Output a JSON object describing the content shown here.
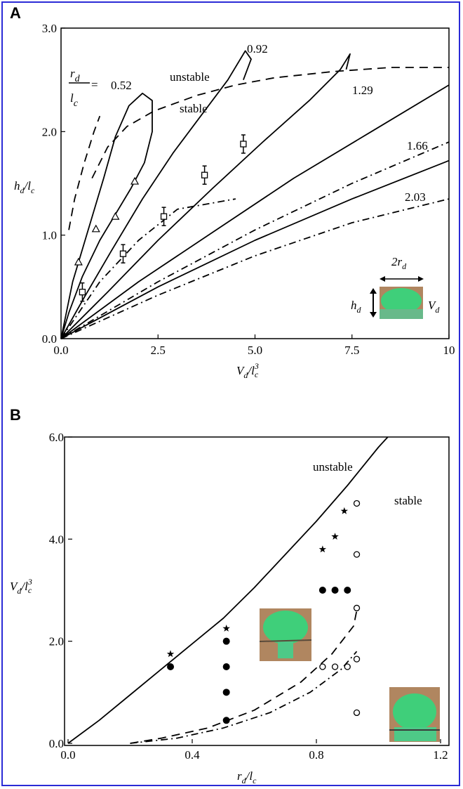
{
  "panel_labels": [
    "A",
    "B"
  ],
  "chart_data": [
    {
      "type": "line",
      "panel": "A",
      "xlabel": "V_d/l_c^3",
      "ylabel": "h_d/l_c",
      "xlim": [
        0,
        10
      ],
      "ylim": [
        0,
        3.0
      ],
      "x_ticks": [
        "0.0",
        "2.5",
        "5.0",
        "7.5",
        "10"
      ],
      "y_ticks": [
        "0.0",
        "1.0",
        "2.0",
        "3.0"
      ],
      "legend_param": "r_d/l_c =",
      "annotations": [
        "unstable",
        "stable",
        "0.52",
        "0.92",
        "1.29",
        "1.66",
        "2.03",
        "2r_d",
        "h_d",
        "V_d"
      ],
      "series": [
        {
          "label": "0.52",
          "style": "solid",
          "points": [
            [
              0,
              0
            ],
            [
              0.3,
              0.55
            ],
            [
              0.7,
              1.05
            ],
            [
              1.1,
              1.55
            ],
            [
              1.4,
              1.95
            ],
            [
              1.75,
              2.25
            ],
            [
              2.1,
              2.37
            ],
            [
              2.35,
              2.3
            ],
            [
              2.35,
              2.0
            ],
            [
              2.15,
              1.7
            ],
            [
              1.8,
              1.45
            ],
            [
              1.4,
              1.2
            ],
            [
              1.0,
              0.95
            ],
            [
              0.55,
              0.6
            ],
            [
              0.2,
              0.25
            ],
            [
              0,
              0
            ]
          ]
        },
        {
          "label": "0.92",
          "style": "solid",
          "points": [
            [
              0,
              0
            ],
            [
              0.6,
              0.4
            ],
            [
              1.3,
              0.85
            ],
            [
              2.1,
              1.35
            ],
            [
              2.9,
              1.8
            ],
            [
              3.6,
              2.15
            ],
            [
              4.3,
              2.5
            ],
            [
              4.75,
              2.78
            ],
            [
              4.9,
              2.7
            ],
            [
              4.7,
              2.5
            ]
          ]
        },
        {
          "label": "1.29",
          "style": "solid",
          "points": [
            [
              0,
              0
            ],
            [
              1.2,
              0.45
            ],
            [
              2.5,
              0.95
            ],
            [
              3.9,
              1.45
            ],
            [
              5.2,
              1.9
            ],
            [
              6.4,
              2.3
            ],
            [
              7.2,
              2.6
            ],
            [
              7.45,
              2.75
            ],
            [
              7.35,
              2.6
            ]
          ]
        },
        {
          "label": "1.66",
          "style": "solid",
          "points": [
            [
              0,
              0
            ],
            [
              2,
              0.55
            ],
            [
              4,
              1.05
            ],
            [
              6,
              1.55
            ],
            [
              8,
              2.0
            ],
            [
              10,
              2.45
            ]
          ]
        },
        {
          "label": "2.03",
          "style": "solid",
          "points": [
            [
              0,
              0
            ],
            [
              2.5,
              0.5
            ],
            [
              5,
              0.95
            ],
            [
              7.5,
              1.35
            ],
            [
              10,
              1.72
            ]
          ]
        },
        {
          "label": "",
          "style": "dashed",
          "points": [
            [
              0.8,
              1.55
            ],
            [
              1.2,
              1.85
            ],
            [
              1.7,
              2.05
            ],
            [
              2.4,
              2.2
            ],
            [
              3.5,
              2.35
            ],
            [
              4.5,
              2.45
            ],
            [
              5.5,
              2.52
            ],
            [
              7,
              2.58
            ],
            [
              8.5,
              2.62
            ],
            [
              10,
              2.62
            ]
          ]
        },
        {
          "label": "",
          "style": "dashed",
          "points": [
            [
              0.2,
              1.05
            ],
            [
              0.35,
              1.35
            ],
            [
              0.6,
              1.7
            ],
            [
              0.85,
              2.0
            ],
            [
              1.0,
              2.15
            ]
          ]
        },
        {
          "label": "",
          "style": "dotdash",
          "points": [
            [
              0,
              0
            ],
            [
              1,
              0.55
            ],
            [
              2,
              0.95
            ],
            [
              3,
              1.25
            ],
            [
              4.5,
              1.35
            ]
          ]
        },
        {
          "label": "",
          "style": "dotdash",
          "points": [
            [
              0,
              0
            ],
            [
              2.5,
              0.55
            ],
            [
              5,
              1.05
            ],
            [
              7.5,
              1.5
            ],
            [
              10,
              1.9
            ]
          ]
        },
        {
          "label": "",
          "style": "dotdash",
          "points": [
            [
              0,
              0
            ],
            [
              2.5,
              0.42
            ],
            [
              5,
              0.8
            ],
            [
              7.5,
              1.12
            ],
            [
              10,
              1.35
            ]
          ]
        }
      ],
      "markers": {
        "triangles": [
          [
            0.45,
            0.74
          ],
          [
            0.9,
            1.06
          ],
          [
            1.4,
            1.18
          ],
          [
            1.9,
            1.52
          ]
        ],
        "squares_with_errorbars": [
          [
            0.55,
            0.45
          ],
          [
            1.6,
            0.82
          ],
          [
            2.65,
            1.18
          ],
          [
            3.7,
            1.58
          ],
          [
            4.7,
            1.88
          ]
        ]
      }
    },
    {
      "type": "scatter",
      "panel": "B",
      "xlabel": "r_d/l_c",
      "ylabel": "V_d/l_c^3",
      "xlim": [
        0,
        1.2
      ],
      "ylim": [
        0,
        6.0
      ],
      "x_ticks": [
        "0.0",
        "0.4",
        "0.8",
        "1.2"
      ],
      "y_ticks": [
        "0.0",
        "2.0",
        "4.0",
        "6.0"
      ],
      "annotations": [
        "unstable",
        "stable"
      ],
      "series": [
        {
          "label": "",
          "style": "solid",
          "points": [
            [
              0,
              0
            ],
            [
              0.1,
              0.45
            ],
            [
              0.2,
              0.95
            ],
            [
              0.3,
              1.45
            ],
            [
              0.4,
              1.95
            ],
            [
              0.5,
              2.45
            ],
            [
              0.6,
              3.05
            ],
            [
              0.7,
              3.7
            ],
            [
              0.8,
              4.35
            ],
            [
              0.9,
              5.05
            ],
            [
              1.0,
              5.8
            ],
            [
              1.03,
              6.0
            ]
          ]
        },
        {
          "label": "",
          "style": "dashed",
          "points": [
            [
              0.2,
              0.0
            ],
            [
              0.3,
              0.1
            ],
            [
              0.45,
              0.3
            ],
            [
              0.6,
              0.65
            ],
            [
              0.75,
              1.2
            ],
            [
              0.85,
              1.75
            ],
            [
              0.92,
              2.3
            ],
            [
              0.93,
              2.6
            ]
          ]
        },
        {
          "label": "",
          "style": "dotdash",
          "points": [
            [
              0.2,
              0.0
            ],
            [
              0.35,
              0.1
            ],
            [
              0.5,
              0.3
            ],
            [
              0.65,
              0.6
            ],
            [
              0.78,
              1.0
            ],
            [
              0.88,
              1.45
            ],
            [
              0.93,
              1.8
            ]
          ]
        }
      ],
      "markers": {
        "filled_circles": [
          [
            0.33,
            1.5
          ],
          [
            0.51,
            2.0
          ],
          [
            0.51,
            1.5
          ],
          [
            0.51,
            1.0
          ],
          [
            0.51,
            0.45
          ],
          [
            0.82,
            3.0
          ],
          [
            0.86,
            3.0
          ],
          [
            0.9,
            3.0
          ]
        ],
        "open_circles": [
          [
            0.93,
            4.7
          ],
          [
            0.93,
            3.7
          ],
          [
            0.93,
            2.65
          ],
          [
            0.93,
            1.65
          ],
          [
            0.93,
            0.6
          ],
          [
            0.82,
            1.5
          ],
          [
            0.86,
            1.5
          ],
          [
            0.9,
            1.5
          ]
        ],
        "stars": [
          [
            0.33,
            1.75
          ],
          [
            0.51,
            2.25
          ],
          [
            0.82,
            3.8
          ],
          [
            0.86,
            4.05
          ],
          [
            0.89,
            4.55
          ]
        ]
      }
    }
  ],
  "insets": [
    {
      "panel": "A",
      "description": "green droplet photo"
    },
    {
      "panel": "B",
      "description": "green droplet photo 1"
    },
    {
      "panel": "B",
      "description": "green droplet photo 2"
    }
  ],
  "colors": {
    "frame": "#2b2bd6",
    "axis": "#000000",
    "inset_green": "#3fcf7a",
    "inset_bg": "#b08660"
  }
}
